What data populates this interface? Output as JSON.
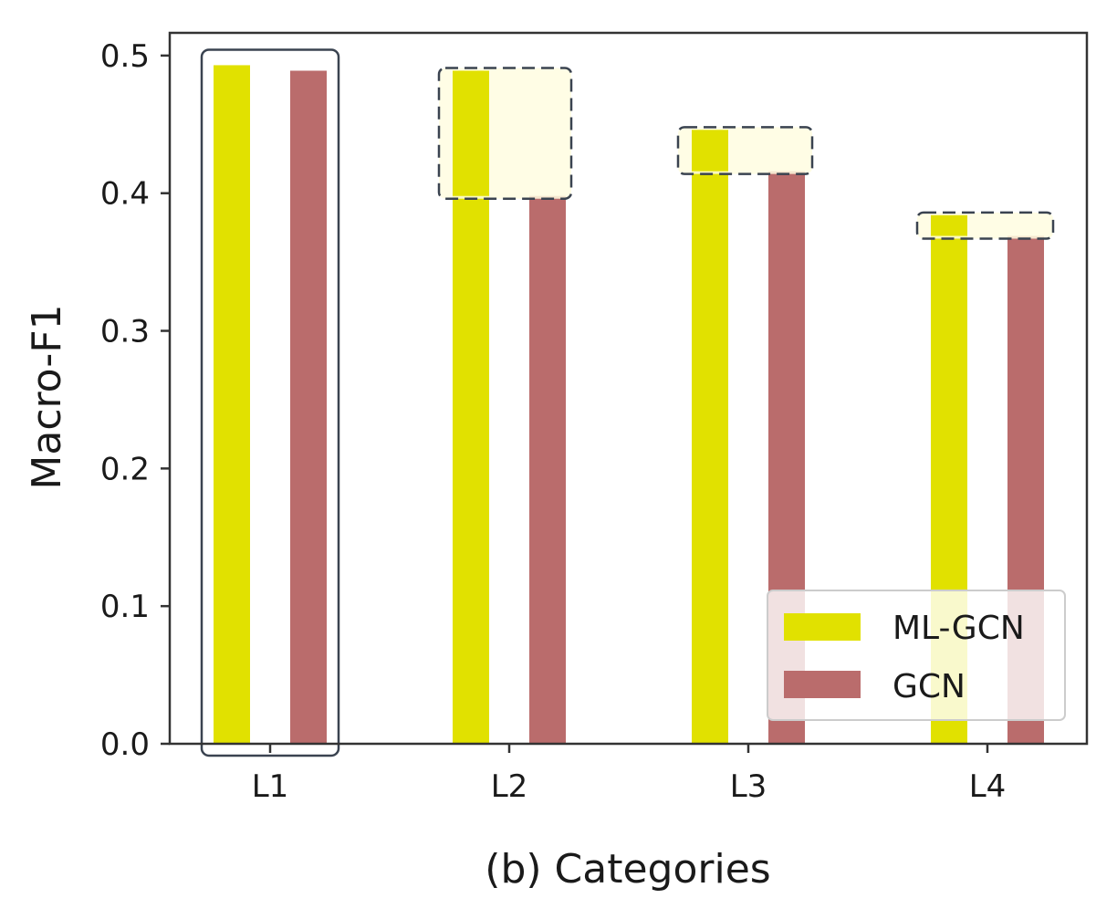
{
  "chart_data": {
    "type": "bar",
    "categories": [
      "L1",
      "L2",
      "L3",
      "L4"
    ],
    "series": [
      {
        "name": "ML-GCN",
        "values": [
          0.493,
          0.489,
          0.446,
          0.384
        ],
        "color": "#e1e100"
      },
      {
        "name": "GCN",
        "values": [
          0.489,
          0.398,
          0.416,
          0.369
        ],
        "color": "#ba6c6c"
      }
    ],
    "xlabel": "(b) Categories",
    "ylabel": "Macro-F1",
    "ylim": [
      0,
      0.5
    ],
    "yticks": [
      "0.0",
      "0.1",
      "0.2",
      "0.3",
      "0.4",
      "0.5"
    ],
    "ytick_values": [
      0,
      0.1,
      0.2,
      0.3,
      0.4,
      0.5
    ],
    "grid": false,
    "legend_position": "lower-right",
    "highlight_color": "#fffde0",
    "frame_color": "#3a4350"
  }
}
